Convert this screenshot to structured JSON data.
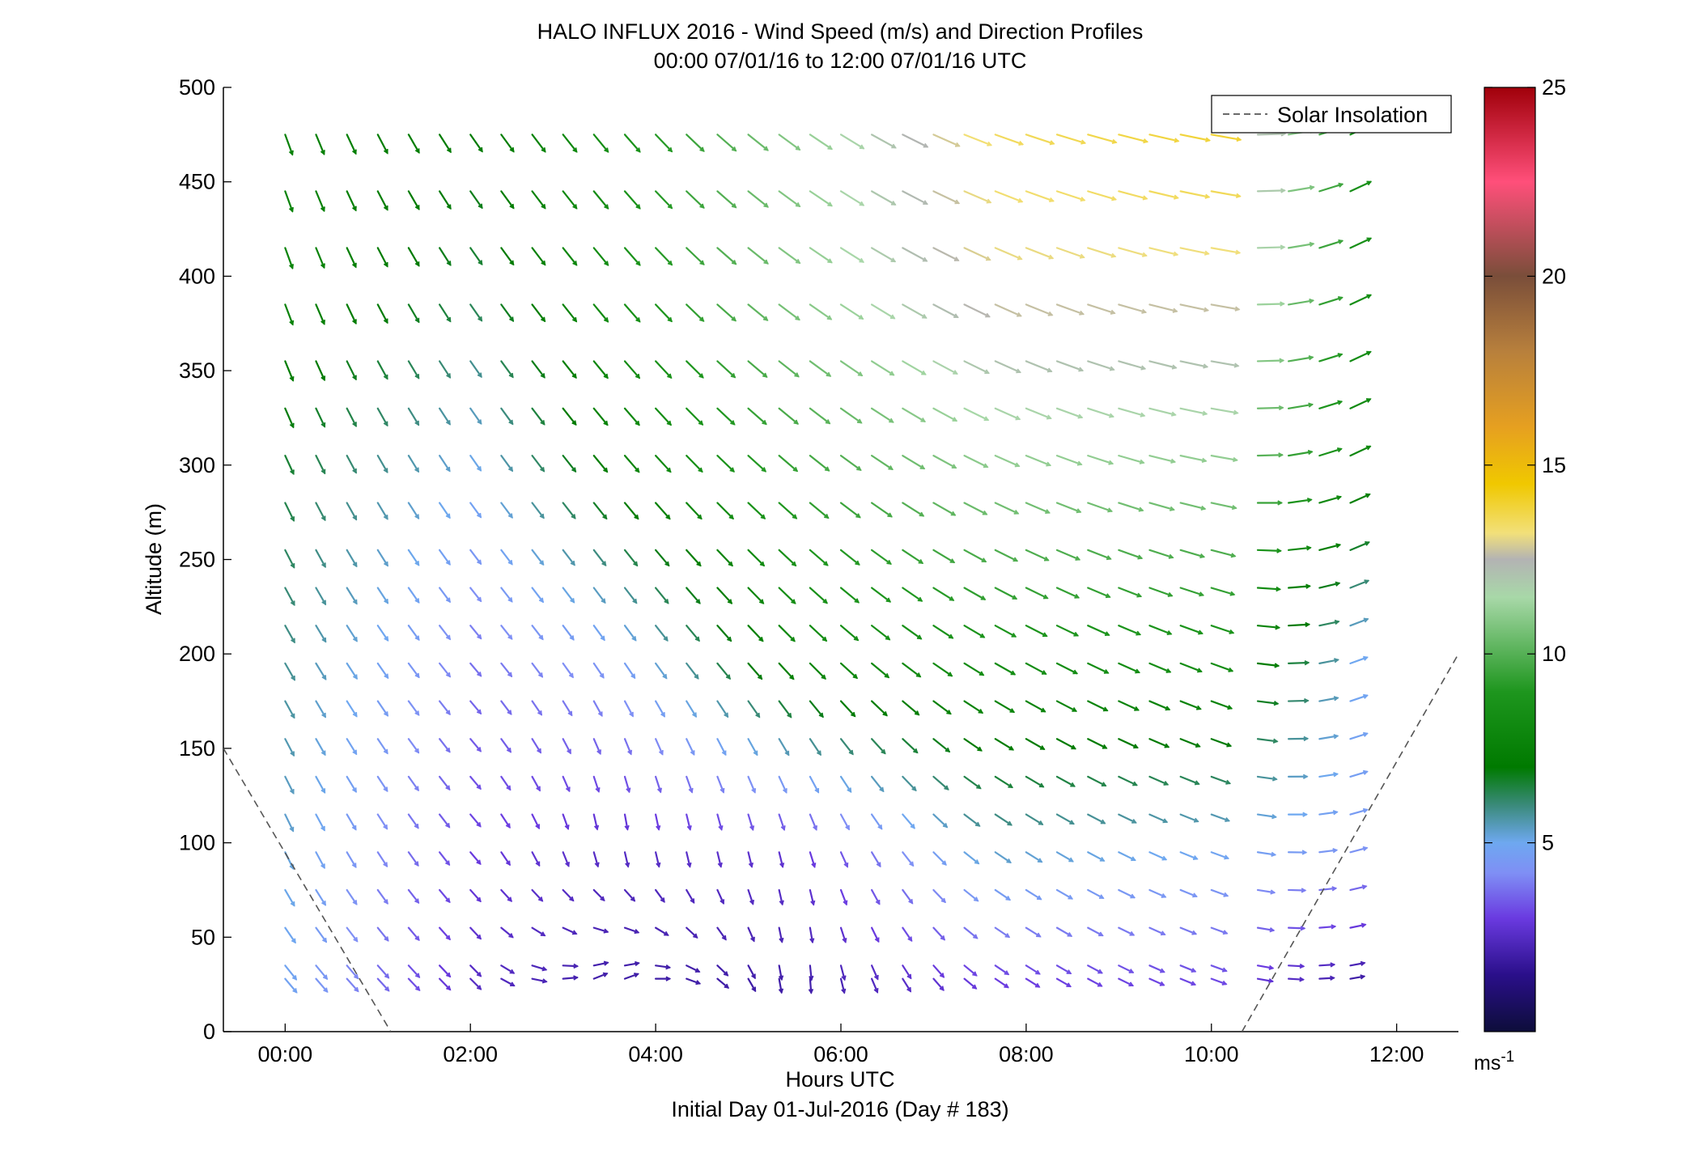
{
  "chart_data": {
    "type": "quiver",
    "title": "HALO INFLUX 2016 - Wind Speed (m/s) and Direction Profiles",
    "subtitle": "00:00 07/01/16 to 12:00 07/01/16  UTC",
    "xlabel": "Hours UTC",
    "xlabel2": "Initial Day 01-Jul-2016 (Day # 183)",
    "ylabel": "Altitude (m)",
    "xlim": [
      -0.667,
      12.667
    ],
    "ylim": [
      0,
      500
    ],
    "xticks": [
      0,
      2,
      4,
      6,
      8,
      10,
      12
    ],
    "xtick_labels": [
      "00:00",
      "02:00",
      "04:00",
      "06:00",
      "08:00",
      "10:00",
      "12:00"
    ],
    "yticks": [
      0,
      50,
      100,
      150,
      200,
      250,
      300,
      350,
      400,
      450,
      500
    ],
    "ytick_labels": [
      "0",
      "50",
      "100",
      "150",
      "200",
      "250",
      "300",
      "350",
      "400",
      "450",
      "500"
    ],
    "grid": false,
    "legend": {
      "placement": "top-right",
      "entries": [
        "Solar Insolation"
      ]
    },
    "colorbar": {
      "range": [
        0,
        25
      ],
      "ticks": [
        5,
        10,
        15,
        20,
        25
      ],
      "tick_labels": [
        "5",
        "10",
        "15",
        "20",
        "25"
      ],
      "unit_label": "ms",
      "unit_exponent": "-1"
    },
    "solar_insolation": {
      "color": "#555555",
      "segments": [
        {
          "x": [
            -0.667,
            1.14
          ],
          "y": [
            150,
            0
          ]
        },
        {
          "x": [
            10.33,
            12.667
          ],
          "y": [
            0,
            200
          ]
        }
      ]
    },
    "times": [
      0,
      0.333,
      0.667,
      1.0,
      1.333,
      1.667,
      2.0,
      2.333,
      2.667,
      3.0,
      3.333,
      3.667,
      4.0,
      4.333,
      4.667,
      5.0,
      5.333,
      5.667,
      6.0,
      6.333,
      6.667,
      7.0,
      7.333,
      7.667,
      8.0,
      8.333,
      8.667,
      9.0,
      9.333,
      9.667,
      10.0,
      10.5,
      10.833,
      11.167,
      11.5
    ],
    "altitudes": [
      28,
      35,
      55,
      75,
      95,
      115,
      135,
      155,
      175,
      195,
      215,
      235,
      255,
      280,
      305,
      330,
      355,
      385,
      415,
      445,
      475
    ],
    "wind_profile_keyframes": [
      {
        "t": 0,
        "points": [
          {
            "alt": 28,
            "speed": 4.8,
            "dir": 220
          },
          {
            "alt": 100,
            "speed": 5.2,
            "dir": 205
          },
          {
            "alt": 200,
            "speed": 5.8,
            "dir": 210
          },
          {
            "alt": 300,
            "speed": 6.5,
            "dir": 205
          },
          {
            "alt": 400,
            "speed": 7.8,
            "dir": 200
          },
          {
            "alt": 480,
            "speed": 7.5,
            "dir": 200
          }
        ]
      },
      {
        "t": 2,
        "points": [
          {
            "alt": 28,
            "speed": 2.5,
            "dir": 225
          },
          {
            "alt": 100,
            "speed": 3.0,
            "dir": 220
          },
          {
            "alt": 200,
            "speed": 3.8,
            "dir": 220
          },
          {
            "alt": 300,
            "speed": 5.0,
            "dir": 215
          },
          {
            "alt": 400,
            "speed": 6.5,
            "dir": 215
          },
          {
            "alt": 480,
            "speed": 7.0,
            "dir": 215
          }
        ]
      },
      {
        "t": 3.5,
        "points": [
          {
            "alt": 28,
            "speed": 2.0,
            "dir": 300
          },
          {
            "alt": 100,
            "speed": 2.5,
            "dir": 185
          },
          {
            "alt": 200,
            "speed": 4.5,
            "dir": 215
          },
          {
            "alt": 300,
            "speed": 7.5,
            "dir": 220
          },
          {
            "alt": 400,
            "speed": 8.5,
            "dir": 220
          },
          {
            "alt": 480,
            "speed": 8.5,
            "dir": 220
          }
        ]
      },
      {
        "t": 5.5,
        "points": [
          {
            "alt": 28,
            "speed": 2.0,
            "dir": 180
          },
          {
            "alt": 100,
            "speed": 2.8,
            "dir": 195
          },
          {
            "alt": 200,
            "speed": 8.0,
            "dir": 225
          },
          {
            "alt": 300,
            "speed": 9.5,
            "dir": 230
          },
          {
            "alt": 400,
            "speed": 11.0,
            "dir": 235
          },
          {
            "alt": 480,
            "speed": 11.0,
            "dir": 235
          }
        ]
      },
      {
        "t": 7.5,
        "points": [
          {
            "alt": 28,
            "speed": 3.0,
            "dir": 235
          },
          {
            "alt": 100,
            "speed": 5.5,
            "dir": 235
          },
          {
            "alt": 200,
            "speed": 8.5,
            "dir": 240
          },
          {
            "alt": 300,
            "speed": 11.0,
            "dir": 245
          },
          {
            "alt": 400,
            "speed": 13.0,
            "dir": 245
          },
          {
            "alt": 480,
            "speed": 13.5,
            "dir": 250
          }
        ]
      },
      {
        "t": 10,
        "points": [
          {
            "alt": 28,
            "speed": 3.2,
            "dir": 250
          },
          {
            "alt": 100,
            "speed": 5.0,
            "dir": 250
          },
          {
            "alt": 200,
            "speed": 8.5,
            "dir": 250
          },
          {
            "alt": 300,
            "speed": 11.0,
            "dir": 260
          },
          {
            "alt": 400,
            "speed": 13.0,
            "dir": 260
          },
          {
            "alt": 480,
            "speed": 14.0,
            "dir": 260
          }
        ]
      },
      {
        "t": 11.5,
        "points": [
          {
            "alt": 28,
            "speed": 2.0,
            "dir": 280
          },
          {
            "alt": 100,
            "speed": 4.5,
            "dir": 285
          },
          {
            "alt": 200,
            "speed": 5.0,
            "dir": 290
          },
          {
            "alt": 300,
            "speed": 8.0,
            "dir": 295
          },
          {
            "alt": 400,
            "speed": 8.5,
            "dir": 295
          },
          {
            "alt": 480,
            "speed": 8.5,
            "dir": 295
          }
        ]
      }
    ],
    "colormap": [
      {
        "v": 0,
        "c": "#0d0d3a"
      },
      {
        "v": 1.5,
        "c": "#2a0f8a"
      },
      {
        "v": 3,
        "c": "#6a3ae0"
      },
      {
        "v": 4.2,
        "c": "#7f8ff5"
      },
      {
        "v": 5,
        "c": "#6ea8f0"
      },
      {
        "v": 6,
        "c": "#3a8a7a"
      },
      {
        "v": 7,
        "c": "#007a00"
      },
      {
        "v": 9,
        "c": "#1e961e"
      },
      {
        "v": 11.5,
        "c": "#a8d8a8"
      },
      {
        "v": 12.5,
        "c": "#b3b3b3"
      },
      {
        "v": 13.2,
        "c": "#f2e07a"
      },
      {
        "v": 14.5,
        "c": "#f0c800"
      },
      {
        "v": 16,
        "c": "#e6a020"
      },
      {
        "v": 18,
        "c": "#b8803c"
      },
      {
        "v": 20,
        "c": "#7a4e3a"
      },
      {
        "v": 22.5,
        "c": "#ff4f7a"
      },
      {
        "v": 25,
        "c": "#a0000a"
      }
    ]
  }
}
